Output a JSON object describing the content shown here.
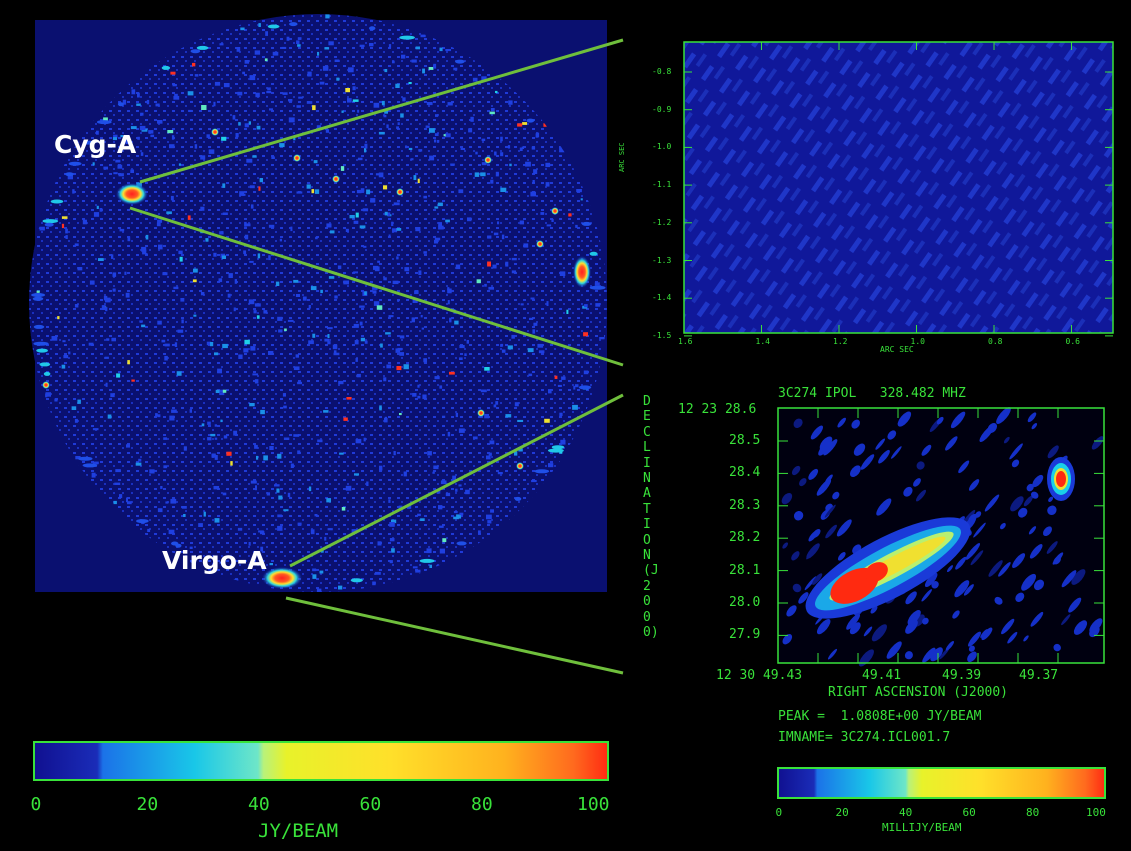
{
  "colors": {
    "background": "#000000",
    "sky_field": "#0a1070",
    "frame_green": "#39e23a",
    "callout_line": "#6fbf3c",
    "label_white": "#ffffff"
  },
  "sky_map": {
    "source_labels": [
      "Cyg-A",
      "Virgo-A"
    ]
  },
  "zoom_top": {
    "y_axis_label": "ARC SEC",
    "y_ticks": [
      "-0.8",
      "-0.9",
      "-1.0",
      "-1.1",
      "-1.2",
      "-1.3",
      "-1.4",
      "-1.5"
    ],
    "x_axis_label": "ARC SEC",
    "x_ticks": [
      "1.6",
      "1.4",
      "1.2",
      "1.0",
      "0.8",
      "0.6"
    ]
  },
  "zoom_bottom": {
    "title": "3C274 IPOL   328.482 MHZ",
    "dec_label": "DECLINATION (J2000)",
    "dec_prefix": "12 23 28.6",
    "y_ticks": [
      "28.5",
      "28.4",
      "28.3",
      "28.2",
      "28.1",
      "28.0",
      "27.9"
    ],
    "ra_prefix": "12 30 49.43",
    "x_ticks": [
      "49.41",
      "49.39",
      "49.37"
    ],
    "x_axis_label": "RIGHT ASCENSION (J2000)",
    "peak": "PEAK =  1.0808E+00 JY/BEAM",
    "imname": "IMNAME= 3C274.ICL001.7"
  },
  "colorbar_left": {
    "ticks": [
      "0",
      "20",
      "40",
      "60",
      "80",
      "100"
    ],
    "unit": "JY/BEAM"
  },
  "colorbar_right": {
    "ticks": [
      "0",
      "20",
      "40",
      "60",
      "80",
      "100"
    ],
    "unit": "MILLIJY/BEAM"
  }
}
